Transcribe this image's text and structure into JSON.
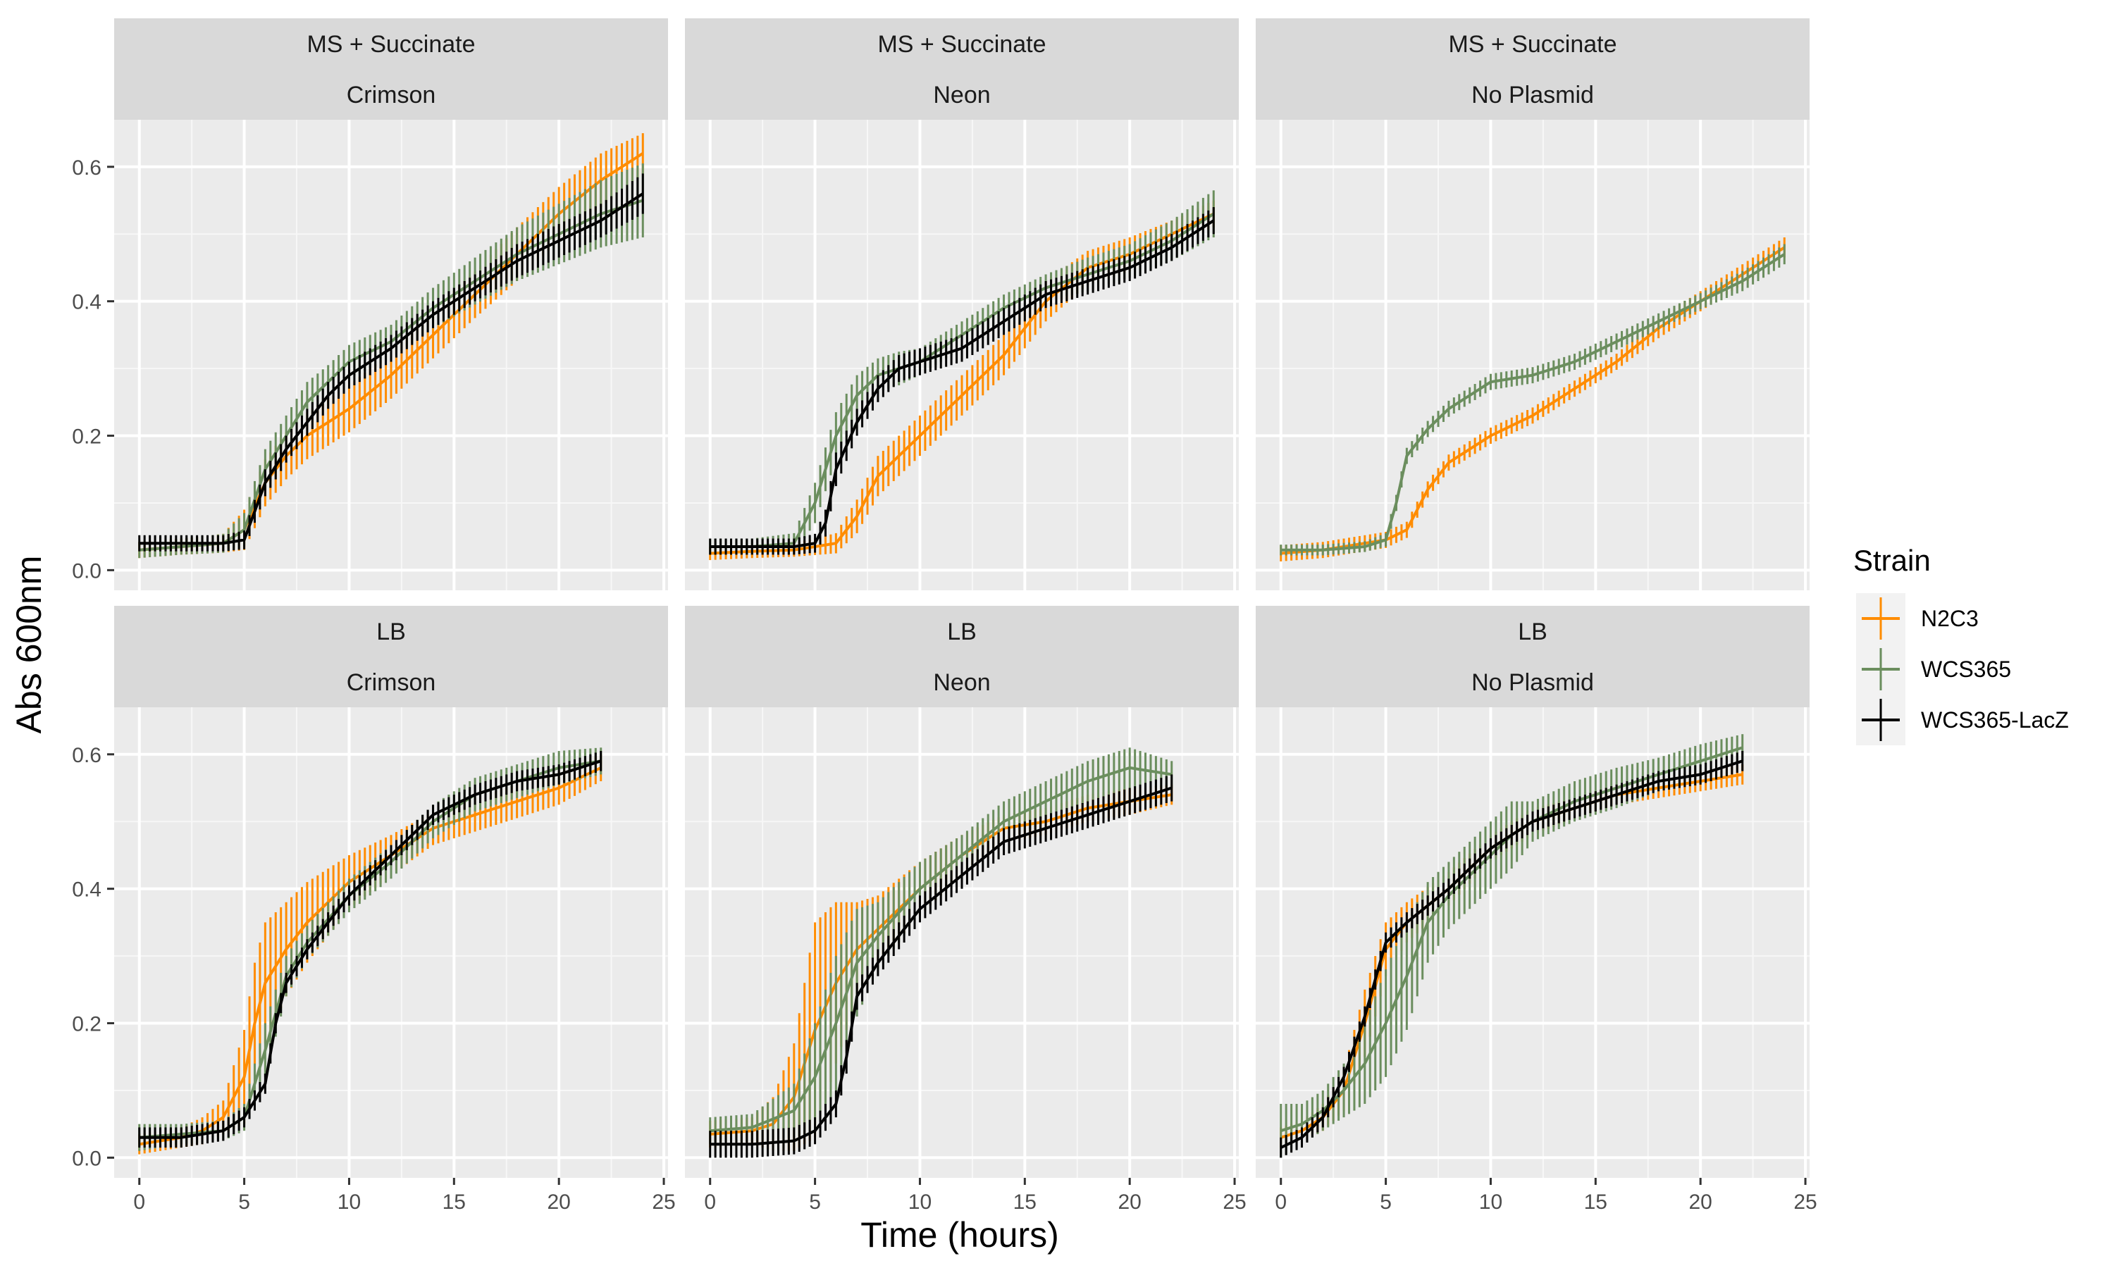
{
  "chart_data": {
    "type": "line",
    "xlabel": "Time (hours)",
    "ylabel": "Abs 600nm",
    "xlim": [
      -1.2,
      25.2
    ],
    "ylim": [
      -0.03,
      0.67
    ],
    "x_ticks": [
      0,
      5,
      10,
      15,
      20,
      25
    ],
    "y_ticks": [
      0.0,
      0.2,
      0.4,
      0.6
    ],
    "x_tick_labels": [
      "0",
      "5",
      "10",
      "15",
      "20",
      "25"
    ],
    "y_tick_labels": [
      "0.0",
      "0.2",
      "0.4",
      "0.6"
    ],
    "grid": true,
    "legend": {
      "title": "Strain",
      "position": "right",
      "entries": [
        {
          "name": "N2C3",
          "color": "#FF8C00"
        },
        {
          "name": "WCS365",
          "color": "#6B8E5E"
        },
        {
          "name": "WCS365-LacZ",
          "color": "#000000"
        }
      ]
    },
    "facets": [
      {
        "media": "MS + Succinate",
        "plasmid": "Crimson",
        "series": [
          {
            "name": "N2C3",
            "x": [
              0,
              2,
              4,
              5,
              6,
              7,
              8,
              9,
              10,
              12,
              14,
              16,
              18,
              20,
              22,
              24
            ],
            "y": [
              0.03,
              0.035,
              0.04,
              0.06,
              0.13,
              0.17,
              0.2,
              0.22,
              0.24,
              0.29,
              0.35,
              0.41,
              0.47,
              0.53,
              0.58,
              0.62
            ],
            "err": [
              0.012,
              0.012,
              0.014,
              0.03,
              0.035,
              0.035,
              0.035,
              0.035,
              0.035,
              0.035,
              0.035,
              0.035,
              0.04,
              0.04,
              0.04,
              0.03
            ]
          },
          {
            "name": "WCS365",
            "x": [
              0,
              2,
              4,
              5,
              6,
              7,
              8,
              9,
              10,
              12,
              14,
              16,
              18,
              20,
              22,
              24
            ],
            "y": [
              0.03,
              0.035,
              0.04,
              0.06,
              0.15,
              0.2,
              0.25,
              0.28,
              0.31,
              0.34,
              0.39,
              0.43,
              0.47,
              0.5,
              0.53,
              0.55
            ],
            "err": [
              0.012,
              0.012,
              0.014,
              0.025,
              0.03,
              0.03,
              0.03,
              0.025,
              0.025,
              0.025,
              0.03,
              0.035,
              0.04,
              0.045,
              0.05,
              0.055
            ]
          },
          {
            "name": "WCS365-LacZ",
            "x": [
              0,
              2,
              4,
              5,
              6,
              7,
              8,
              9,
              10,
              12,
              14,
              16,
              18,
              20,
              22,
              24
            ],
            "y": [
              0.04,
              0.04,
              0.04,
              0.045,
              0.13,
              0.18,
              0.22,
              0.26,
              0.29,
              0.33,
              0.38,
              0.42,
              0.46,
              0.49,
              0.52,
              0.56
            ],
            "err": [
              0.012,
              0.012,
              0.012,
              0.014,
              0.02,
              0.02,
              0.02,
              0.02,
              0.02,
              0.02,
              0.02,
              0.02,
              0.025,
              0.025,
              0.025,
              0.03
            ]
          }
        ]
      },
      {
        "media": "MS + Succinate",
        "plasmid": "Neon",
        "series": [
          {
            "name": "N2C3",
            "x": [
              0,
              2,
              4,
              6,
              7,
              8,
              9,
              10,
              12,
              14,
              16,
              18,
              20,
              22,
              24
            ],
            "y": [
              0.025,
              0.028,
              0.03,
              0.04,
              0.08,
              0.14,
              0.17,
              0.2,
              0.26,
              0.32,
              0.4,
              0.45,
              0.47,
              0.5,
              0.53
            ],
            "err": [
              0.01,
              0.01,
              0.01,
              0.015,
              0.025,
              0.03,
              0.03,
              0.03,
              0.03,
              0.03,
              0.03,
              0.025,
              0.025,
              0.02,
              0.02
            ]
          },
          {
            "name": "WCS365",
            "x": [
              0,
              2,
              4,
              5,
              6,
              7,
              8,
              9,
              10,
              12,
              14,
              16,
              18,
              20,
              22,
              24
            ],
            "y": [
              0.035,
              0.035,
              0.04,
              0.1,
              0.2,
              0.26,
              0.29,
              0.3,
              0.31,
              0.35,
              0.39,
              0.42,
              0.44,
              0.46,
              0.49,
              0.53
            ],
            "err": [
              0.012,
              0.012,
              0.015,
              0.03,
              0.035,
              0.03,
              0.025,
              0.025,
              0.02,
              0.02,
              0.02,
              0.02,
              0.025,
              0.025,
              0.03,
              0.035
            ]
          },
          {
            "name": "WCS365-LacZ",
            "x": [
              0,
              2,
              4,
              5,
              5.5,
              6,
              7,
              8,
              9,
              10,
              12,
              14,
              16,
              18,
              20,
              22,
              24
            ],
            "y": [
              0.035,
              0.035,
              0.035,
              0.04,
              0.07,
              0.15,
              0.22,
              0.27,
              0.3,
              0.31,
              0.33,
              0.37,
              0.41,
              0.43,
              0.45,
              0.48,
              0.52
            ],
            "err": [
              0.012,
              0.012,
              0.012,
              0.014,
              0.02,
              0.025,
              0.02,
              0.02,
              0.02,
              0.02,
              0.02,
              0.02,
              0.02,
              0.02,
              0.02,
              0.02,
              0.02
            ]
          }
        ]
      },
      {
        "media": "MS + Succinate",
        "plasmid": "No Plasmid",
        "series": [
          {
            "name": "N2C3",
            "x": [
              0,
              2,
              4,
              5,
              6,
              7,
              8,
              9,
              10,
              12,
              14,
              16,
              18,
              20,
              22,
              24
            ],
            "y": [
              0.025,
              0.03,
              0.04,
              0.045,
              0.06,
              0.12,
              0.16,
              0.18,
              0.2,
              0.23,
              0.27,
              0.31,
              0.36,
              0.4,
              0.44,
              0.48
            ],
            "err": [
              0.012,
              0.012,
              0.012,
              0.012,
              0.012,
              0.012,
              0.012,
              0.012,
              0.012,
              0.012,
              0.012,
              0.012,
              0.015,
              0.015,
              0.015,
              0.015
            ]
          },
          {
            "name": "WCS365",
            "x": [
              0,
              2,
              4,
              5,
              5.5,
              6,
              7,
              8,
              9,
              10,
              11,
              12,
              14,
              16,
              18,
              20,
              22,
              24
            ],
            "y": [
              0.03,
              0.03,
              0.035,
              0.045,
              0.1,
              0.17,
              0.21,
              0.24,
              0.26,
              0.28,
              0.285,
              0.29,
              0.31,
              0.34,
              0.37,
              0.4,
              0.43,
              0.47
            ],
            "err": [
              0.008,
              0.008,
              0.008,
              0.01,
              0.012,
              0.012,
              0.012,
              0.012,
              0.012,
              0.012,
              0.012,
              0.012,
              0.012,
              0.012,
              0.012,
              0.012,
              0.015,
              0.015
            ]
          }
        ]
      },
      {
        "media": "LB",
        "plasmid": "Crimson",
        "series": [
          {
            "name": "N2C3",
            "x": [
              0,
              2,
              3,
              4,
              5,
              5.5,
              6,
              7,
              8,
              10,
              12,
              14,
              16,
              18,
              20,
              22
            ],
            "y": [
              0.02,
              0.03,
              0.04,
              0.06,
              0.12,
              0.2,
              0.26,
              0.31,
              0.35,
              0.41,
              0.45,
              0.49,
              0.51,
              0.53,
              0.55,
              0.58
            ],
            "err": [
              0.015,
              0.015,
              0.02,
              0.025,
              0.07,
              0.09,
              0.09,
              0.07,
              0.06,
              0.04,
              0.03,
              0.025,
              0.025,
              0.025,
              0.025,
              0.02
            ]
          },
          {
            "name": "WCS365",
            "x": [
              0,
              2,
              4,
              5,
              6,
              7,
              8,
              10,
              12,
              14,
              16,
              18,
              20,
              22
            ],
            "y": [
              0.03,
              0.035,
              0.04,
              0.06,
              0.16,
              0.27,
              0.32,
              0.39,
              0.44,
              0.5,
              0.54,
              0.56,
              0.58,
              0.59
            ],
            "err": [
              0.02,
              0.015,
              0.015,
              0.02,
              0.04,
              0.03,
              0.025,
              0.025,
              0.025,
              0.025,
              0.025,
              0.025,
              0.025,
              0.02
            ]
          },
          {
            "name": "WCS365-LacZ",
            "x": [
              0,
              2,
              4,
              5,
              6,
              6.5,
              7,
              8,
              10,
              12,
              14,
              16,
              18,
              20,
              22
            ],
            "y": [
              0.03,
              0.03,
              0.04,
              0.06,
              0.11,
              0.2,
              0.26,
              0.31,
              0.39,
              0.45,
              0.51,
              0.54,
              0.56,
              0.57,
              0.59
            ],
            "err": [
              0.015,
              0.015,
              0.015,
              0.015,
              0.015,
              0.015,
              0.015,
              0.015,
              0.015,
              0.015,
              0.015,
              0.015,
              0.015,
              0.015,
              0.015
            ]
          }
        ]
      },
      {
        "media": "LB",
        "plasmid": "Neon",
        "series": [
          {
            "name": "N2C3",
            "x": [
              0,
              2,
              3,
              4,
              5,
              6,
              7,
              8,
              10,
              12,
              14,
              16,
              18,
              20,
              22
            ],
            "y": [
              0.035,
              0.04,
              0.05,
              0.09,
              0.19,
              0.26,
              0.31,
              0.34,
              0.4,
              0.45,
              0.49,
              0.5,
              0.52,
              0.53,
              0.54
            ],
            "err": [
              0.02,
              0.02,
              0.04,
              0.08,
              0.16,
              0.12,
              0.07,
              0.05,
              0.04,
              0.03,
              0.02,
              0.02,
              0.02,
              0.02,
              0.015
            ]
          },
          {
            "name": "WCS365",
            "x": [
              0,
              2,
              4,
              5,
              6,
              7,
              8,
              10,
              12,
              14,
              16,
              18,
              20,
              22
            ],
            "y": [
              0.04,
              0.045,
              0.07,
              0.12,
              0.2,
              0.29,
              0.33,
              0.4,
              0.45,
              0.5,
              0.53,
              0.56,
              0.58,
              0.57
            ],
            "err": [
              0.02,
              0.02,
              0.04,
              0.08,
              0.1,
              0.08,
              0.05,
              0.04,
              0.03,
              0.03,
              0.03,
              0.03,
              0.03,
              0.02
            ]
          },
          {
            "name": "WCS365-LacZ",
            "x": [
              0,
              2,
              4,
              5,
              6,
              6.5,
              7,
              8,
              10,
              12,
              14,
              16,
              18,
              20,
              22
            ],
            "y": [
              0.02,
              0.02,
              0.025,
              0.04,
              0.08,
              0.15,
              0.24,
              0.29,
              0.37,
              0.42,
              0.47,
              0.49,
              0.51,
              0.53,
              0.55
            ],
            "err": [
              0.02,
              0.02,
              0.02,
              0.02,
              0.02,
              0.025,
              0.02,
              0.02,
              0.02,
              0.02,
              0.02,
              0.02,
              0.02,
              0.02,
              0.02
            ]
          }
        ]
      },
      {
        "media": "LB",
        "plasmid": "No Plasmid",
        "series": [
          {
            "name": "N2C3",
            "x": [
              0,
              1,
              2,
              3,
              4,
              5,
              6,
              8,
              10,
              12,
              14,
              16,
              18,
              20,
              22
            ],
            "y": [
              0.03,
              0.04,
              0.06,
              0.1,
              0.2,
              0.31,
              0.35,
              0.4,
              0.46,
              0.5,
              0.52,
              0.54,
              0.55,
              0.56,
              0.57
            ],
            "err": [
              0.015,
              0.015,
              0.02,
              0.03,
              0.05,
              0.04,
              0.03,
              0.025,
              0.02,
              0.02,
              0.015,
              0.015,
              0.015,
              0.015,
              0.015
            ]
          },
          {
            "name": "WCS365",
            "x": [
              0,
              1,
              2,
              3,
              4,
              5,
              6,
              7,
              8,
              10,
              11,
              12,
              14,
              16,
              18,
              20,
              22
            ],
            "y": [
              0.04,
              0.05,
              0.07,
              0.1,
              0.14,
              0.2,
              0.27,
              0.35,
              0.39,
              0.45,
              0.48,
              0.5,
              0.53,
              0.55,
              0.57,
              0.59,
              0.61
            ],
            "err": [
              0.04,
              0.03,
              0.03,
              0.04,
              0.06,
              0.08,
              0.08,
              0.06,
              0.05,
              0.05,
              0.05,
              0.03,
              0.03,
              0.03,
              0.025,
              0.025,
              0.02
            ]
          },
          {
            "name": "WCS365-LacZ",
            "x": [
              0,
              1,
              2,
              3,
              4,
              5,
              6,
              8,
              10,
              12,
              14,
              16,
              18,
              20,
              22
            ],
            "y": [
              0.015,
              0.03,
              0.06,
              0.12,
              0.21,
              0.32,
              0.35,
              0.4,
              0.46,
              0.5,
              0.52,
              0.54,
              0.56,
              0.57,
              0.59
            ],
            "err": [
              0.015,
              0.015,
              0.015,
              0.015,
              0.015,
              0.015,
              0.015,
              0.015,
              0.015,
              0.015,
              0.015,
              0.015,
              0.015,
              0.015,
              0.015
            ]
          }
        ]
      }
    ]
  }
}
